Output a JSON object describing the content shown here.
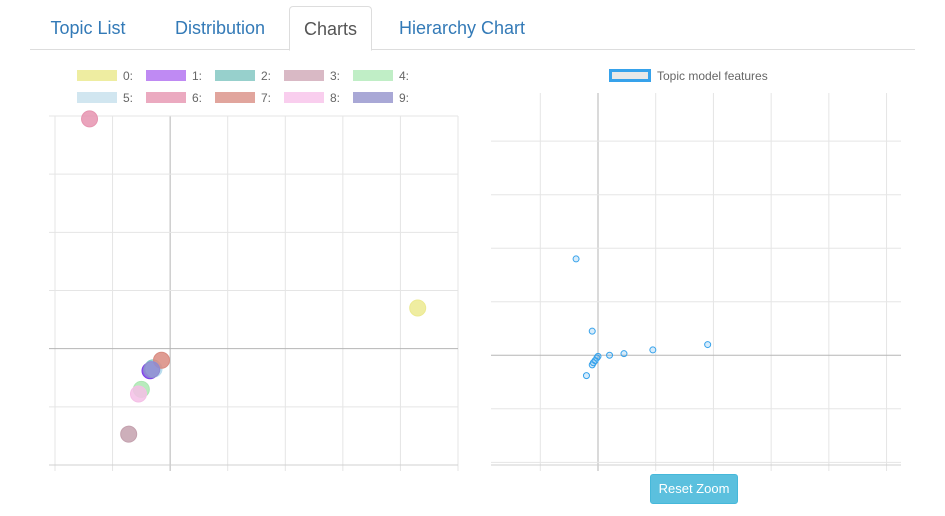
{
  "tabs": [
    {
      "label": "Topic List",
      "active": false
    },
    {
      "label": "Distribution",
      "active": false
    },
    {
      "label": "Charts",
      "active": true
    },
    {
      "label": "Hierarchy Chart",
      "active": false
    }
  ],
  "left_legend": [
    {
      "label": "0:",
      "color": "#ecea91"
    },
    {
      "label": "1:",
      "color": "#b476f1"
    },
    {
      "label": "2:",
      "color": "#86c8c4"
    },
    {
      "label": "3:",
      "color": "#d3adbb"
    },
    {
      "label": "4:",
      "color": "#b6ecbd"
    },
    {
      "label": "5:",
      "color": "#c9e2ee"
    },
    {
      "label": "6:",
      "color": "#e89cb6"
    },
    {
      "label": "7:",
      "color": "#dc968c"
    },
    {
      "label": "8:",
      "color": "#f8c6ec"
    },
    {
      "label": "9:",
      "color": "#9b99cf"
    }
  ],
  "right_legend": {
    "label": "Topic model features",
    "border_color": "#36a2eb"
  },
  "reset_button": {
    "label": "Reset Zoom"
  },
  "chart_data": [
    {
      "type": "scatter",
      "title": "",
      "xlim": [
        -2,
        5
      ],
      "ylim": [
        -2,
        4
      ],
      "grid": true,
      "legend_placement": "top",
      "series": [
        {
          "name": "0:",
          "color": "#ecea91",
          "points": [
            [
              4.3,
              0.7
            ]
          ]
        },
        {
          "name": "1:",
          "color": "#7b3fe6",
          "points": [
            [
              -0.35,
              -0.38
            ]
          ]
        },
        {
          "name": "2:",
          "color": "#7fc7c2",
          "points": [
            [
              -0.3,
              -0.33
            ]
          ]
        },
        {
          "name": "3:",
          "color": "#c4a1ae",
          "points": [
            [
              -0.72,
              -1.47
            ]
          ]
        },
        {
          "name": "4:",
          "color": "#abe7b2",
          "points": [
            [
              -0.5,
              -0.7
            ]
          ]
        },
        {
          "name": "5:",
          "color": "#b7dcee",
          "points": [
            [
              -0.28,
              -0.35
            ]
          ]
        },
        {
          "name": "6:",
          "color": "#e694b0",
          "points": [
            [
              -1.4,
              3.95
            ]
          ]
        },
        {
          "name": "7:",
          "color": "#d98b80",
          "points": [
            [
              -0.15,
              -0.2
            ]
          ]
        },
        {
          "name": "8:",
          "color": "#f4bfe6",
          "points": [
            [
              -0.55,
              -0.78
            ]
          ]
        },
        {
          "name": "9:",
          "color": "#8e8bd1",
          "points": [
            [
              -0.32,
              -0.36
            ]
          ]
        }
      ]
    },
    {
      "type": "scatter",
      "title": "",
      "xlim": [
        -1.75,
        5.25
      ],
      "ylim": [
        -2.05,
        4.9
      ],
      "grid": true,
      "legend_placement": "top",
      "series": [
        {
          "name": "Topic model features",
          "color": "#36a2eb",
          "points": [
            [
              -0.38,
              1.8
            ],
            [
              -0.1,
              0.45
            ],
            [
              -0.2,
              -0.38
            ],
            [
              -0.1,
              -0.18
            ],
            [
              -0.05,
              -0.1
            ],
            [
              -0.02,
              -0.05
            ],
            [
              0.0,
              -0.02
            ],
            [
              0.2,
              0.0
            ],
            [
              0.45,
              0.03
            ],
            [
              0.95,
              0.1
            ],
            [
              1.9,
              0.2
            ],
            [
              -0.08,
              -0.14
            ]
          ]
        }
      ]
    }
  ]
}
